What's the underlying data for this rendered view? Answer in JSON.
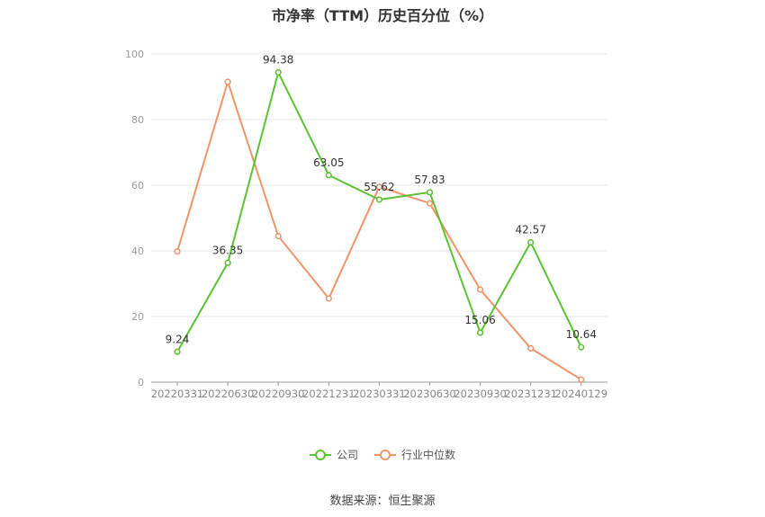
{
  "chart_data": {
    "type": "line",
    "title": "市净率（TTM）历史百分位（%）",
    "xlabel": "",
    "ylabel": "",
    "ylim": [
      0,
      100
    ],
    "yticks": [
      0,
      20,
      40,
      60,
      80,
      100
    ],
    "grid": true,
    "legend_position": "bottom",
    "categories": [
      "20220331",
      "20220630",
      "20220930",
      "20221231",
      "20230331",
      "20230630",
      "20230930",
      "20231231",
      "20240129"
    ],
    "series": [
      {
        "name": "公司",
        "color": "#5cc234",
        "values": [
          9.24,
          36.35,
          94.38,
          63.05,
          55.62,
          57.83,
          15.06,
          42.57,
          10.64
        ],
        "labels": [
          "9.24",
          "36.35",
          "94.38",
          "63.05",
          "55.62",
          "57.83",
          "15.06",
          "42.57",
          "10.64"
        ]
      },
      {
        "name": "行业中位数",
        "color": "#f0956a",
        "values": [
          39.8,
          91.5,
          44.5,
          25.5,
          59.5,
          54.5,
          28.2,
          10.3,
          0.8
        ]
      }
    ],
    "source": "数据来源：恒生聚源"
  }
}
